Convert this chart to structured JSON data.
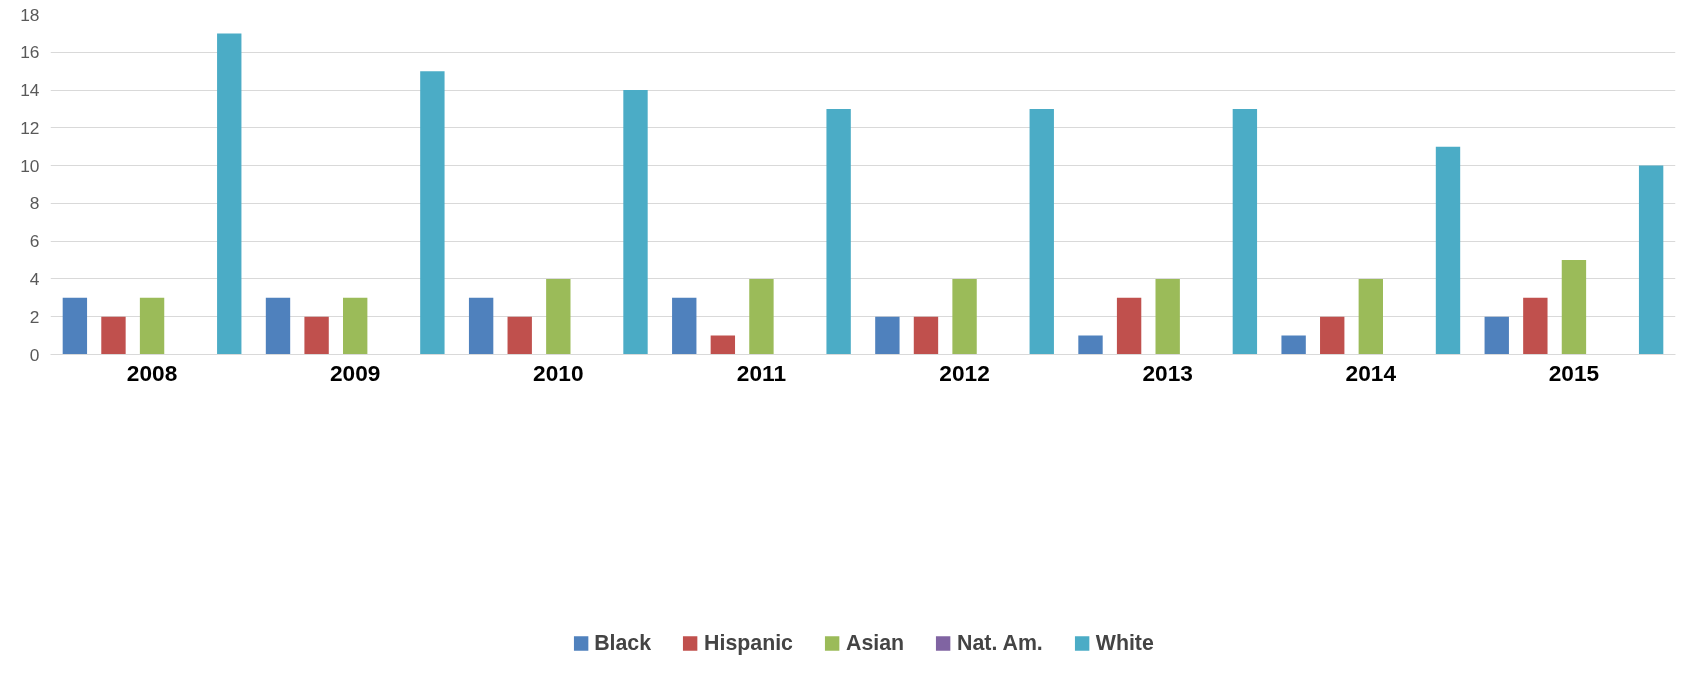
{
  "chart_data": {
    "type": "bar",
    "categories": [
      "2008",
      "2009",
      "2010",
      "2011",
      "2012",
      "2013",
      "2014",
      "2015"
    ],
    "series": [
      {
        "name": "Black",
        "color": "#4f81bd",
        "values": [
          3,
          3,
          3,
          3,
          2,
          1,
          1,
          2
        ]
      },
      {
        "name": "Hispanic",
        "color": "#c0504d",
        "values": [
          2,
          2,
          2,
          1,
          2,
          3,
          2,
          3
        ]
      },
      {
        "name": "Asian",
        "color": "#9bbb59",
        "values": [
          3,
          3,
          4,
          4,
          4,
          4,
          4,
          5
        ]
      },
      {
        "name": "Nat. Am.",
        "color": "#8064a2",
        "values": [
          0,
          0,
          0,
          0,
          0,
          0,
          0,
          0
        ]
      },
      {
        "name": "White",
        "color": "#4bacc6",
        "values": [
          17,
          15,
          14,
          13,
          13,
          13,
          11,
          10
        ]
      }
    ],
    "ylim": [
      0,
      18
    ],
    "yticks": [
      0,
      2,
      4,
      6,
      8,
      10,
      12,
      14,
      16,
      18
    ],
    "grid": "y",
    "legend": "bottom"
  }
}
